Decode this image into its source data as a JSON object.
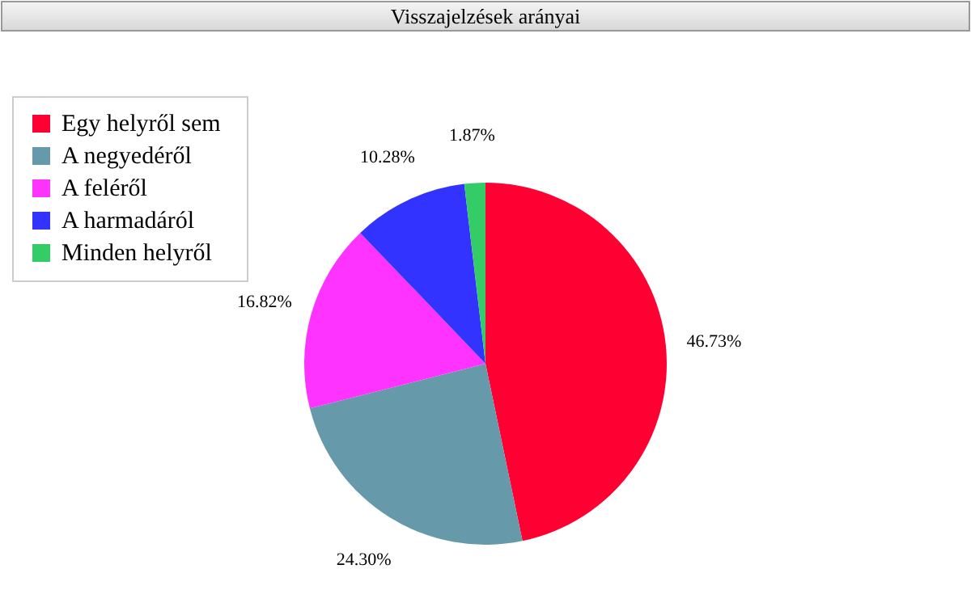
{
  "chart_data": {
    "type": "pie",
    "title": "Visszajelzések arányai",
    "categories": [
      "Egy helyről sem",
      "A negyedéről",
      "A feléről",
      "A harmadáról",
      "Minden helyről"
    ],
    "values": [
      46.73,
      24.3,
      16.82,
      10.28,
      1.87
    ],
    "colors": [
      "#ff0033",
      "#6699aa",
      "#ff33ff",
      "#3333ff",
      "#33cc66"
    ],
    "value_labels": [
      "46.73%",
      "24.30%",
      "16.82%",
      "10.28%",
      "1.87%"
    ],
    "legend": "top left"
  }
}
